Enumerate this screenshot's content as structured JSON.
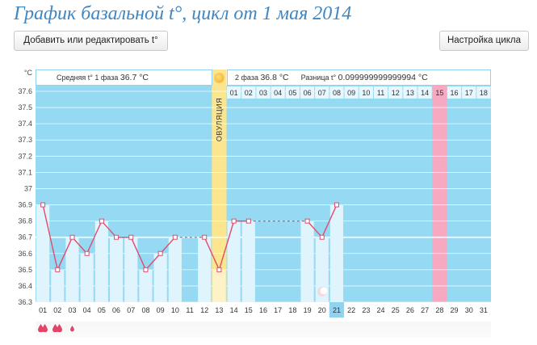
{
  "title": "График базальной t°, цикл от 1 мая 2014",
  "toolbar": {
    "edit_label": "Добавить или редактировать t°",
    "settings_label": "Настройка цикла"
  },
  "unit": "°C",
  "phase1": {
    "label": "Средняя t° 1 фаза",
    "value": "36.7 °C"
  },
  "phase2": {
    "label": "2 фаза",
    "value": "36.8 °C"
  },
  "difference": {
    "label": "Разница t°",
    "value": "0.099999999999994 °C"
  },
  "ovulation_label": "ОВУЛЯЦИЯ",
  "colors": {
    "chart_bg": "#96d9f2",
    "ovulation": "#fce58f",
    "pink": "#f6a9c0",
    "line": "#e14b6c",
    "today": "#8fd3f0"
  },
  "icons": {
    "ovulation": "sun-icon",
    "moon": "moon-icon",
    "bleeding": "drop-icon"
  },
  "today_day": "21",
  "post_ovulation_days": [
    "01",
    "02",
    "03",
    "04",
    "05",
    "06",
    "07",
    "08",
    "09",
    "10",
    "11",
    "12",
    "13",
    "14",
    "15",
    "16",
    "17",
    "18"
  ],
  "bleeding": [
    {
      "day": "01",
      "level": 3
    },
    {
      "day": "02",
      "level": 3
    },
    {
      "day": "03",
      "level": 1
    }
  ],
  "chart_data": {
    "type": "line",
    "x": [
      "01",
      "02",
      "03",
      "04",
      "05",
      "06",
      "07",
      "08",
      "09",
      "10",
      "11",
      "12",
      "13",
      "14",
      "15",
      "16",
      "17",
      "18",
      "19",
      "20",
      "21",
      "22",
      "23",
      "24",
      "25",
      "26",
      "27",
      "28",
      "29",
      "30",
      "31"
    ],
    "yticks": [
      "36.3",
      "36.4",
      "36.5",
      "36.6",
      "36.7",
      "36.8",
      "36.9",
      "37",
      "37.1",
      "37.2",
      "37.3",
      "37.4",
      "37.5",
      "37.6"
    ],
    "ylim": [
      36.3,
      37.6
    ],
    "coverline": 36.7,
    "series": [
      {
        "values": [
          36.9,
          36.5,
          36.7,
          36.6,
          36.8,
          36.7,
          36.7,
          36.5,
          36.6,
          36.7,
          null,
          36.7,
          36.5,
          36.8,
          36.8,
          null,
          null,
          null,
          36.8,
          36.7,
          36.9,
          null,
          null,
          null,
          null,
          null,
          null,
          null,
          null,
          null,
          null
        ]
      }
    ],
    "dashed_gaps": [
      [
        10,
        12
      ],
      [
        15,
        19
      ]
    ],
    "ovulation_day": "13",
    "highlight_day": "28",
    "moon_day": "20"
  }
}
